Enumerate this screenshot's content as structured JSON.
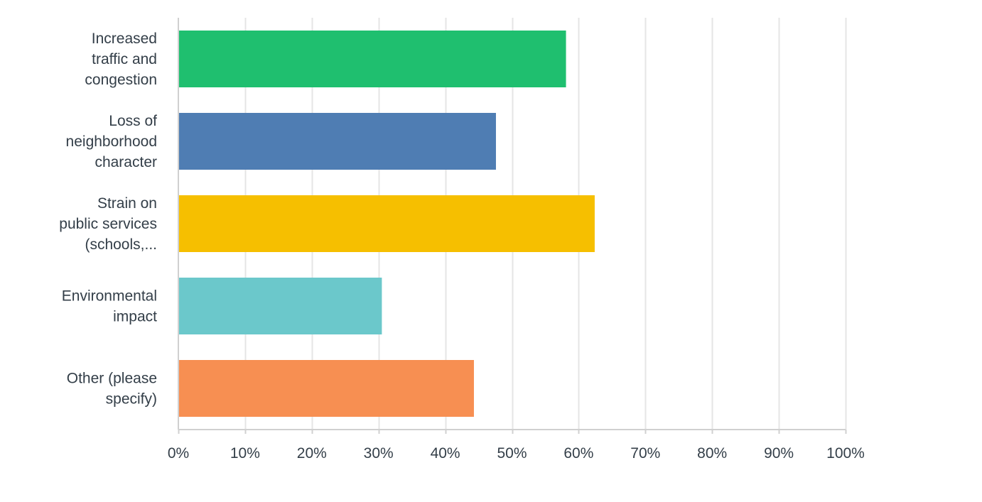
{
  "colors": {
    "background": "#ffffff",
    "gridline": "#e5e5e5",
    "axis_line": "#d0d0d0",
    "label_text": "#333e48"
  },
  "chart_data": {
    "type": "bar",
    "orientation": "horizontal",
    "title": "",
    "xlabel": "",
    "ylabel": "",
    "categories": [
      [
        "Increased",
        "traffic and",
        "congestion"
      ],
      [
        "Loss of",
        "neighborhood",
        "character"
      ],
      [
        "Strain on",
        "public services",
        "(schools,..."
      ],
      [
        "Environmental",
        "impact"
      ],
      [
        "Other (please",
        "specify)"
      ]
    ],
    "values": [
      58.1,
      47.6,
      62.4,
      30.5,
      44.3
    ],
    "bar_colors": [
      "#1fbf6f",
      "#4f7db3",
      "#f6bf00",
      "#6bc8cb",
      "#f78f52"
    ],
    "xlim": [
      0,
      100
    ],
    "x_ticks": [
      0,
      10,
      20,
      30,
      40,
      50,
      60,
      70,
      80,
      90,
      100
    ],
    "x_tick_labels": [
      "0%",
      "10%",
      "20%",
      "30%",
      "40%",
      "50%",
      "60%",
      "70%",
      "80%",
      "90%",
      "100%"
    ],
    "grid": true,
    "legend": "none"
  }
}
